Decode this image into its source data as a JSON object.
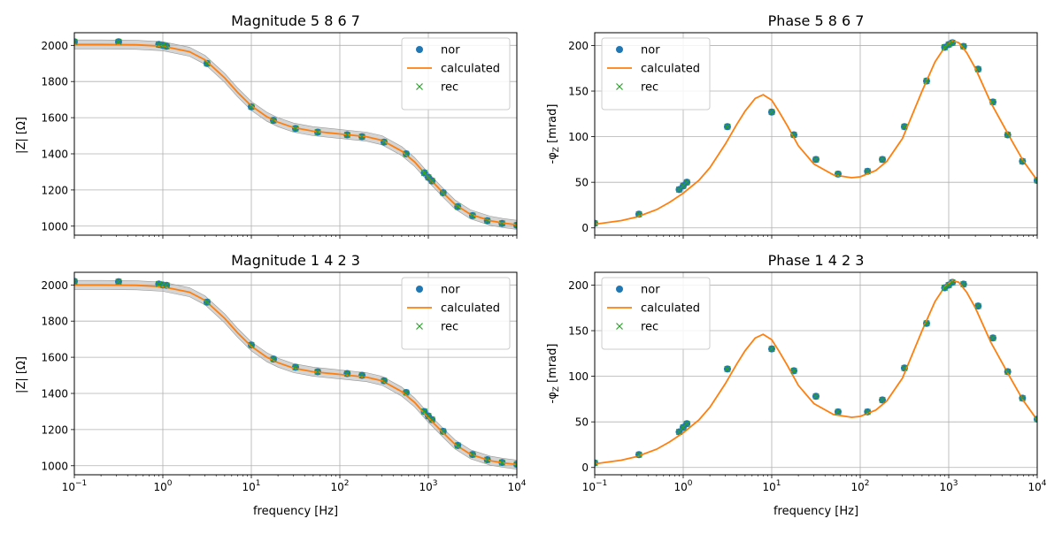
{
  "figure": {
    "xlabel": "frequency [Hz]",
    "x_ticks": [
      {
        "v": 0.1,
        "base": "10",
        "exp": "−1"
      },
      {
        "v": 1,
        "base": "10",
        "exp": "0"
      },
      {
        "v": 10,
        "base": "10",
        "exp": "1"
      },
      {
        "v": 100,
        "base": "10",
        "exp": "2"
      },
      {
        "v": 1000,
        "base": "10",
        "exp": "3"
      },
      {
        "v": 10000,
        "base": "10",
        "exp": "4"
      }
    ]
  },
  "colors": {
    "nor": "#1f77b4",
    "calculated": "#ff7f0e",
    "rec": "#2ca02c",
    "band": "#b0b0b0",
    "grid": "#b0b0b0"
  },
  "chart_data": [
    {
      "id": "mag1",
      "type": "scatter",
      "title": "Magnitude 5 8 6 7",
      "ylabel": "|Z| [Ω]",
      "xscale": "log",
      "xlim": [
        0.1,
        10000
      ],
      "ylim": [
        950,
        2070
      ],
      "yticks": [
        1000,
        1200,
        1400,
        1600,
        1800,
        2000
      ],
      "show_xticklabels": false,
      "grid": true,
      "legend": {
        "placement": "top-right",
        "entries": [
          "nor",
          "calculated",
          "rec"
        ]
      },
      "series": [
        {
          "name": "nor",
          "kind": "points",
          "marker": "circle",
          "x": [
            0.1,
            0.316,
            0.9,
            1.0,
            1.1,
            3.16,
            10,
            17.8,
            31.6,
            56.2,
            121,
            178,
            316,
            562,
            900,
            1000,
            1100,
            1470,
            2150,
            3160,
            4640,
            6810,
            10000
          ],
          "y": [
            2020,
            2020,
            2005,
            2000,
            1995,
            1900,
            1660,
            1585,
            1540,
            1520,
            1505,
            1495,
            1465,
            1400,
            1295,
            1270,
            1250,
            1185,
            1108,
            1058,
            1030,
            1015,
            1005
          ]
        },
        {
          "name": "calculated",
          "kind": "line",
          "x": [
            0.1,
            0.2,
            0.5,
            1,
            2,
            3,
            5,
            7,
            10,
            15,
            20,
            30,
            50,
            100,
            200,
            300,
            500,
            700,
            1000,
            1500,
            2000,
            3000,
            5000,
            7000,
            10000
          ],
          "y": [
            2005,
            2005,
            2003,
            1995,
            1965,
            1920,
            1820,
            1740,
            1665,
            1605,
            1575,
            1545,
            1525,
            1510,
            1495,
            1475,
            1415,
            1355,
            1270,
            1180,
            1120,
            1065,
            1030,
            1017,
            1007
          ]
        },
        {
          "name": "rec",
          "kind": "points",
          "marker": "x",
          "x": [
            0.1,
            0.316,
            0.9,
            1.0,
            1.1,
            3.16,
            10,
            17.8,
            31.6,
            56.2,
            121,
            178,
            316,
            562,
            900,
            1000,
            1100,
            1470,
            2150,
            3160,
            4640,
            6810,
            10000
          ],
          "y": [
            2020,
            2020,
            2005,
            2000,
            1995,
            1900,
            1660,
            1585,
            1540,
            1520,
            1505,
            1495,
            1465,
            1400,
            1295,
            1270,
            1250,
            1185,
            1108,
            1058,
            1030,
            1015,
            1005
          ]
        }
      ],
      "band": {
        "half_width": 25
      }
    },
    {
      "id": "phase1",
      "type": "scatter",
      "title": "Phase 5 8 6 7",
      "ylabel": "-φ_Z [mrad]",
      "xscale": "log",
      "xlim": [
        0.1,
        10000
      ],
      "ylim": [
        -8,
        214
      ],
      "yticks": [
        0,
        50,
        100,
        150,
        200
      ],
      "show_xticklabels": false,
      "grid": true,
      "legend": {
        "placement": "top-left",
        "entries": [
          "nor",
          "calculated",
          "rec"
        ]
      },
      "series": [
        {
          "name": "nor",
          "kind": "points",
          "marker": "circle",
          "x": [
            0.1,
            0.316,
            0.9,
            1.0,
            1.1,
            3.16,
            10,
            17.8,
            31.6,
            56.2,
            121,
            178,
            316,
            562,
            900,
            1000,
            1100,
            1470,
            2150,
            3160,
            4640,
            6810,
            10000
          ],
          "y": [
            5,
            15,
            42,
            46,
            50,
            111,
            127,
            102,
            75,
            59,
            62,
            75,
            111,
            161,
            198,
            201,
            203,
            199,
            174,
            138,
            102,
            73,
            52
          ]
        },
        {
          "name": "calculated",
          "kind": "line",
          "x": [
            0.1,
            0.2,
            0.3,
            0.5,
            0.7,
            1,
            1.5,
            2,
            3,
            4,
            5,
            6.5,
            8,
            10,
            12,
            15,
            20,
            30,
            50,
            80,
            100,
            150,
            200,
            300,
            500,
            700,
            900,
            1100,
            1300,
            1600,
            2000,
            3000,
            5000,
            7000,
            10000
          ],
          "y": [
            4,
            8,
            12,
            20,
            28,
            38,
            52,
            66,
            92,
            113,
            128,
            142,
            146,
            140,
            128,
            112,
            90,
            70,
            58,
            55,
            56,
            63,
            73,
            98,
            150,
            182,
            198,
            205,
            203,
            192,
            175,
            137,
            98,
            73,
            52
          ]
        },
        {
          "name": "rec",
          "kind": "points",
          "marker": "x",
          "x": [
            0.1,
            0.316,
            0.9,
            1.0,
            1.1,
            3.16,
            10,
            17.8,
            31.6,
            56.2,
            121,
            178,
            316,
            562,
            900,
            1000,
            1100,
            1470,
            2150,
            3160,
            4640,
            6810,
            10000
          ],
          "y": [
            5,
            15,
            42,
            46,
            50,
            111,
            127,
            102,
            75,
            59,
            62,
            75,
            111,
            161,
            198,
            201,
            203,
            199,
            174,
            138,
            102,
            73,
            52
          ]
        }
      ]
    },
    {
      "id": "mag2",
      "type": "scatter",
      "title": "Magnitude 1 4 2 3",
      "ylabel": "|Z| [Ω]",
      "xscale": "log",
      "xlim": [
        0.1,
        10000
      ],
      "ylim": [
        950,
        2070
      ],
      "yticks": [
        1000,
        1200,
        1400,
        1600,
        1800,
        2000
      ],
      "show_xticklabels": true,
      "grid": true,
      "legend": {
        "placement": "top-right",
        "entries": [
          "nor",
          "calculated",
          "rec"
        ]
      },
      "series": [
        {
          "name": "nor",
          "kind": "points",
          "marker": "circle",
          "x": [
            0.1,
            0.316,
            0.9,
            1.0,
            1.1,
            3.16,
            10,
            17.8,
            31.6,
            56.2,
            121,
            178,
            316,
            562,
            900,
            1000,
            1100,
            1470,
            2150,
            3160,
            4640,
            6810,
            10000
          ],
          "y": [
            2020,
            2018,
            2005,
            2000,
            1998,
            1905,
            1668,
            1590,
            1545,
            1520,
            1510,
            1500,
            1470,
            1405,
            1300,
            1275,
            1255,
            1190,
            1112,
            1062,
            1033,
            1018,
            1008
          ]
        },
        {
          "name": "calculated",
          "kind": "line",
          "x": [
            0.1,
            0.2,
            0.5,
            1,
            2,
            3,
            5,
            7,
            10,
            15,
            20,
            30,
            50,
            100,
            200,
            300,
            500,
            700,
            1000,
            1500,
            2000,
            3000,
            5000,
            7000,
            10000
          ],
          "y": [
            2000,
            2000,
            1998,
            1990,
            1960,
            1915,
            1815,
            1735,
            1660,
            1600,
            1570,
            1540,
            1520,
            1505,
            1490,
            1470,
            1410,
            1350,
            1265,
            1178,
            1118,
            1063,
            1028,
            1016,
            1006
          ]
        },
        {
          "name": "rec",
          "kind": "points",
          "marker": "x",
          "x": [
            0.1,
            0.316,
            0.9,
            1.0,
            1.1,
            3.16,
            10,
            17.8,
            31.6,
            56.2,
            121,
            178,
            316,
            562,
            900,
            1000,
            1100,
            1470,
            2150,
            3160,
            4640,
            6810,
            10000
          ],
          "y": [
            2020,
            2018,
            2005,
            2000,
            1998,
            1905,
            1668,
            1590,
            1545,
            1520,
            1510,
            1500,
            1470,
            1405,
            1300,
            1275,
            1255,
            1190,
            1112,
            1062,
            1033,
            1018,
            1008
          ]
        }
      ],
      "band": {
        "half_width": 25
      }
    },
    {
      "id": "phase2",
      "type": "scatter",
      "title": "Phase 1 4 2 3",
      "ylabel": "-φ_Z [mrad]",
      "xscale": "log",
      "xlim": [
        0.1,
        10000
      ],
      "ylim": [
        -8,
        214
      ],
      "yticks": [
        0,
        50,
        100,
        150,
        200
      ],
      "show_xticklabels": true,
      "grid": true,
      "legend": {
        "placement": "top-left",
        "entries": [
          "nor",
          "calculated",
          "rec"
        ]
      },
      "series": [
        {
          "name": "nor",
          "kind": "points",
          "marker": "circle",
          "x": [
            0.1,
            0.316,
            0.9,
            1.0,
            1.1,
            3.16,
            10,
            17.8,
            31.6,
            56.2,
            121,
            178,
            316,
            562,
            900,
            1000,
            1100,
            1470,
            2150,
            3160,
            4640,
            6810,
            10000
          ],
          "y": [
            5,
            14,
            39,
            44,
            48,
            108,
            130,
            106,
            78,
            61,
            61,
            74,
            109,
            158,
            197,
            200,
            203,
            201,
            177,
            142,
            105,
            76,
            53
          ]
        },
        {
          "name": "calculated",
          "kind": "line",
          "x": [
            0.1,
            0.2,
            0.3,
            0.5,
            0.7,
            1,
            1.5,
            2,
            3,
            4,
            5,
            6.5,
            8,
            10,
            12,
            15,
            20,
            30,
            50,
            80,
            100,
            150,
            200,
            300,
            500,
            700,
            900,
            1100,
            1300,
            1600,
            2000,
            3000,
            5000,
            7000,
            10000
          ],
          "y": [
            4,
            8,
            12,
            20,
            28,
            38,
            52,
            66,
            92,
            113,
            128,
            142,
            146,
            140,
            128,
            112,
            90,
            70,
            58,
            55,
            56,
            63,
            73,
            98,
            150,
            182,
            198,
            205,
            203,
            192,
            175,
            137,
            98,
            73,
            52
          ]
        },
        {
          "name": "rec",
          "kind": "points",
          "marker": "x",
          "x": [
            0.1,
            0.316,
            0.9,
            1.0,
            1.1,
            3.16,
            10,
            17.8,
            31.6,
            56.2,
            121,
            178,
            316,
            562,
            900,
            1000,
            1100,
            1470,
            2150,
            3160,
            4640,
            6810,
            10000
          ],
          "y": [
            5,
            14,
            39,
            44,
            48,
            108,
            130,
            106,
            78,
            61,
            61,
            74,
            109,
            158,
            197,
            200,
            203,
            201,
            177,
            142,
            105,
            76,
            53
          ]
        }
      ]
    }
  ]
}
